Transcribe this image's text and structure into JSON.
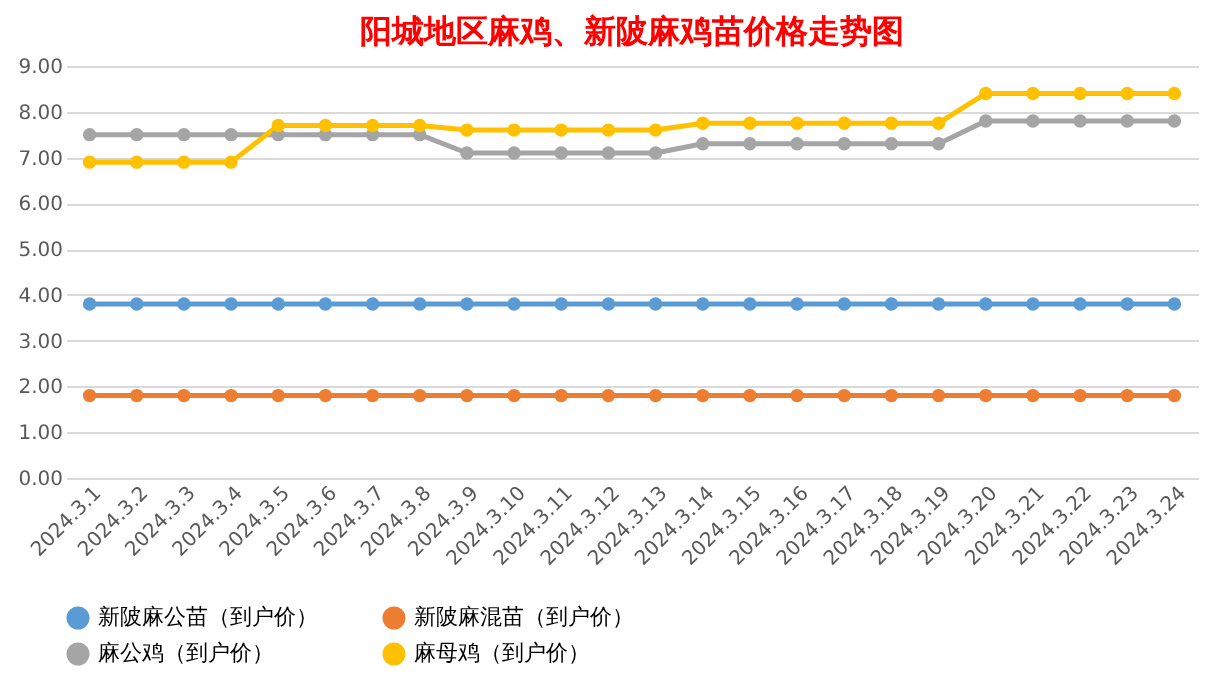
{
  "chart_data": {
    "type": "line",
    "title": "阳城地区麻鸡、新陂麻鸡苗价格走势图",
    "categories": [
      "2024.3.1",
      "2024.3.2",
      "2024.3.3",
      "2024.3.4",
      "2024.3.5",
      "2024.3.6",
      "2024.3.7",
      "2024.3.8",
      "2024.3.9",
      "2024.3.10",
      "2024.3.11",
      "2024.3.12",
      "2024.3.13",
      "2024.3.14",
      "2024.3.15",
      "2024.3.16",
      "2024.3.17",
      "2024.3.18",
      "2024.3.19",
      "2024.3.20",
      "2024.3.21",
      "2024.3.22",
      "2024.3.23",
      "2024.3.24"
    ],
    "series": [
      {
        "name": "新陂麻公苗（到户价）",
        "color": "#5b9bd5",
        "values": [
          3.8,
          3.8,
          3.8,
          3.8,
          3.8,
          3.8,
          3.8,
          3.8,
          3.8,
          3.8,
          3.8,
          3.8,
          3.8,
          3.8,
          3.8,
          3.8,
          3.8,
          3.8,
          3.8,
          3.8,
          3.8,
          3.8,
          3.8,
          3.8
        ]
      },
      {
        "name": "新陂麻混苗（到户价）",
        "color": "#ed7d31",
        "values": [
          1.8,
          1.8,
          1.8,
          1.8,
          1.8,
          1.8,
          1.8,
          1.8,
          1.8,
          1.8,
          1.8,
          1.8,
          1.8,
          1.8,
          1.8,
          1.8,
          1.8,
          1.8,
          1.8,
          1.8,
          1.8,
          1.8,
          1.8,
          1.8
        ]
      },
      {
        "name": "麻公鸡（到户价）",
        "color": "#a5a5a5",
        "values": [
          7.5,
          7.5,
          7.5,
          7.5,
          7.5,
          7.5,
          7.5,
          7.5,
          7.1,
          7.1,
          7.1,
          7.1,
          7.1,
          7.3,
          7.3,
          7.3,
          7.3,
          7.3,
          7.3,
          7.8,
          7.8,
          7.8,
          7.8,
          7.8
        ]
      },
      {
        "name": "麻母鸡（到户价）",
        "color": "#ffc000",
        "values": [
          6.9,
          6.9,
          6.9,
          6.9,
          7.7,
          7.7,
          7.7,
          7.7,
          7.6,
          7.6,
          7.6,
          7.6,
          7.6,
          7.75,
          7.75,
          7.75,
          7.75,
          7.75,
          7.75,
          8.4,
          8.4,
          8.4,
          8.4,
          8.4
        ]
      }
    ],
    "ylim": [
      0,
      9
    ],
    "yticks": [
      {
        "value": 0,
        "label": "0.00"
      },
      {
        "value": 1,
        "label": "1.00"
      },
      {
        "value": 2,
        "label": "2.00"
      },
      {
        "value": 3,
        "label": "3.00"
      },
      {
        "value": 4,
        "label": "4.00"
      },
      {
        "value": 5,
        "label": "5.00"
      },
      {
        "value": 6,
        "label": "6.00"
      },
      {
        "value": 7,
        "label": "7.00"
      },
      {
        "value": 8,
        "label": "8.00"
      },
      {
        "value": 9,
        "label": "9.00"
      }
    ],
    "grid": "y",
    "legend": "bottom",
    "marker": "circle",
    "line_style": "solid"
  }
}
